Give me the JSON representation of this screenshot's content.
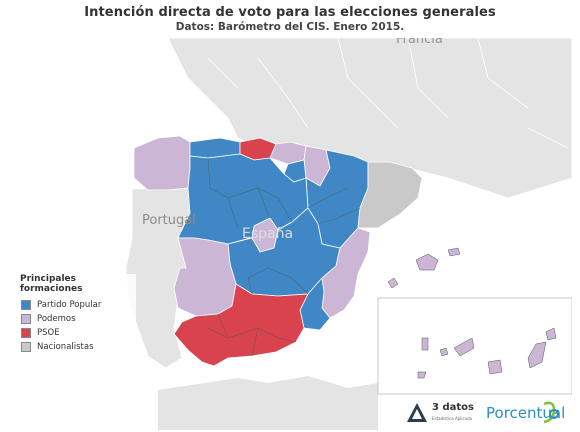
{
  "header": {
    "title": "Intención directa de voto para las elecciones generales",
    "subtitle": "Datos: Barómetro del CIS. Enero 2015."
  },
  "map_labels": {
    "country_spain": "España",
    "country_portugal": "Portugal",
    "country_france": "Francia"
  },
  "legend": {
    "title": "Principales formaciones",
    "items": [
      {
        "label": "Partido Popular",
        "color": "#3f88c5"
      },
      {
        "label": "Podemos",
        "color": "#cbb6d6"
      },
      {
        "label": "PSOE",
        "color": "#d9434e"
      },
      {
        "label": "Nacionalistas",
        "color": "#c9c9c9"
      }
    ]
  },
  "regions": [
    {
      "name": "Galicia",
      "party": "Podemos"
    },
    {
      "name": "Asturias",
      "party": "Partido Popular"
    },
    {
      "name": "Cantabria",
      "party": "PSOE"
    },
    {
      "name": "País Vasco",
      "party": "Podemos"
    },
    {
      "name": "Navarra",
      "party": "Podemos"
    },
    {
      "name": "La Rioja",
      "party": "Partido Popular"
    },
    {
      "name": "Aragón",
      "party": "Partido Popular"
    },
    {
      "name": "Cataluña",
      "party": "Nacionalistas"
    },
    {
      "name": "Castilla y León",
      "party": "Partido Popular"
    },
    {
      "name": "Madrid",
      "party": "Podemos"
    },
    {
      "name": "Castilla-La Mancha",
      "party": "Partido Popular"
    },
    {
      "name": "Extremadura",
      "party": "Podemos"
    },
    {
      "name": "Comunidad Valenciana",
      "party": "Podemos"
    },
    {
      "name": "Murcia",
      "party": "Partido Popular"
    },
    {
      "name": "Andalucía",
      "party": "PSOE"
    },
    {
      "name": "Islas Baleares",
      "party": "Podemos"
    },
    {
      "name": "Islas Canarias",
      "party": "Podemos"
    }
  ],
  "colors": {
    "background_land": "#e4e4e4",
    "sea": "#ffffff",
    "region_border": "#ffffff",
    "province_border": "#555555"
  },
  "logos": {
    "logo_3datos": "3 datos",
    "logo_3datos_sub": "Estadística Aplicada",
    "logo_porcentual": "Porcentual"
  }
}
